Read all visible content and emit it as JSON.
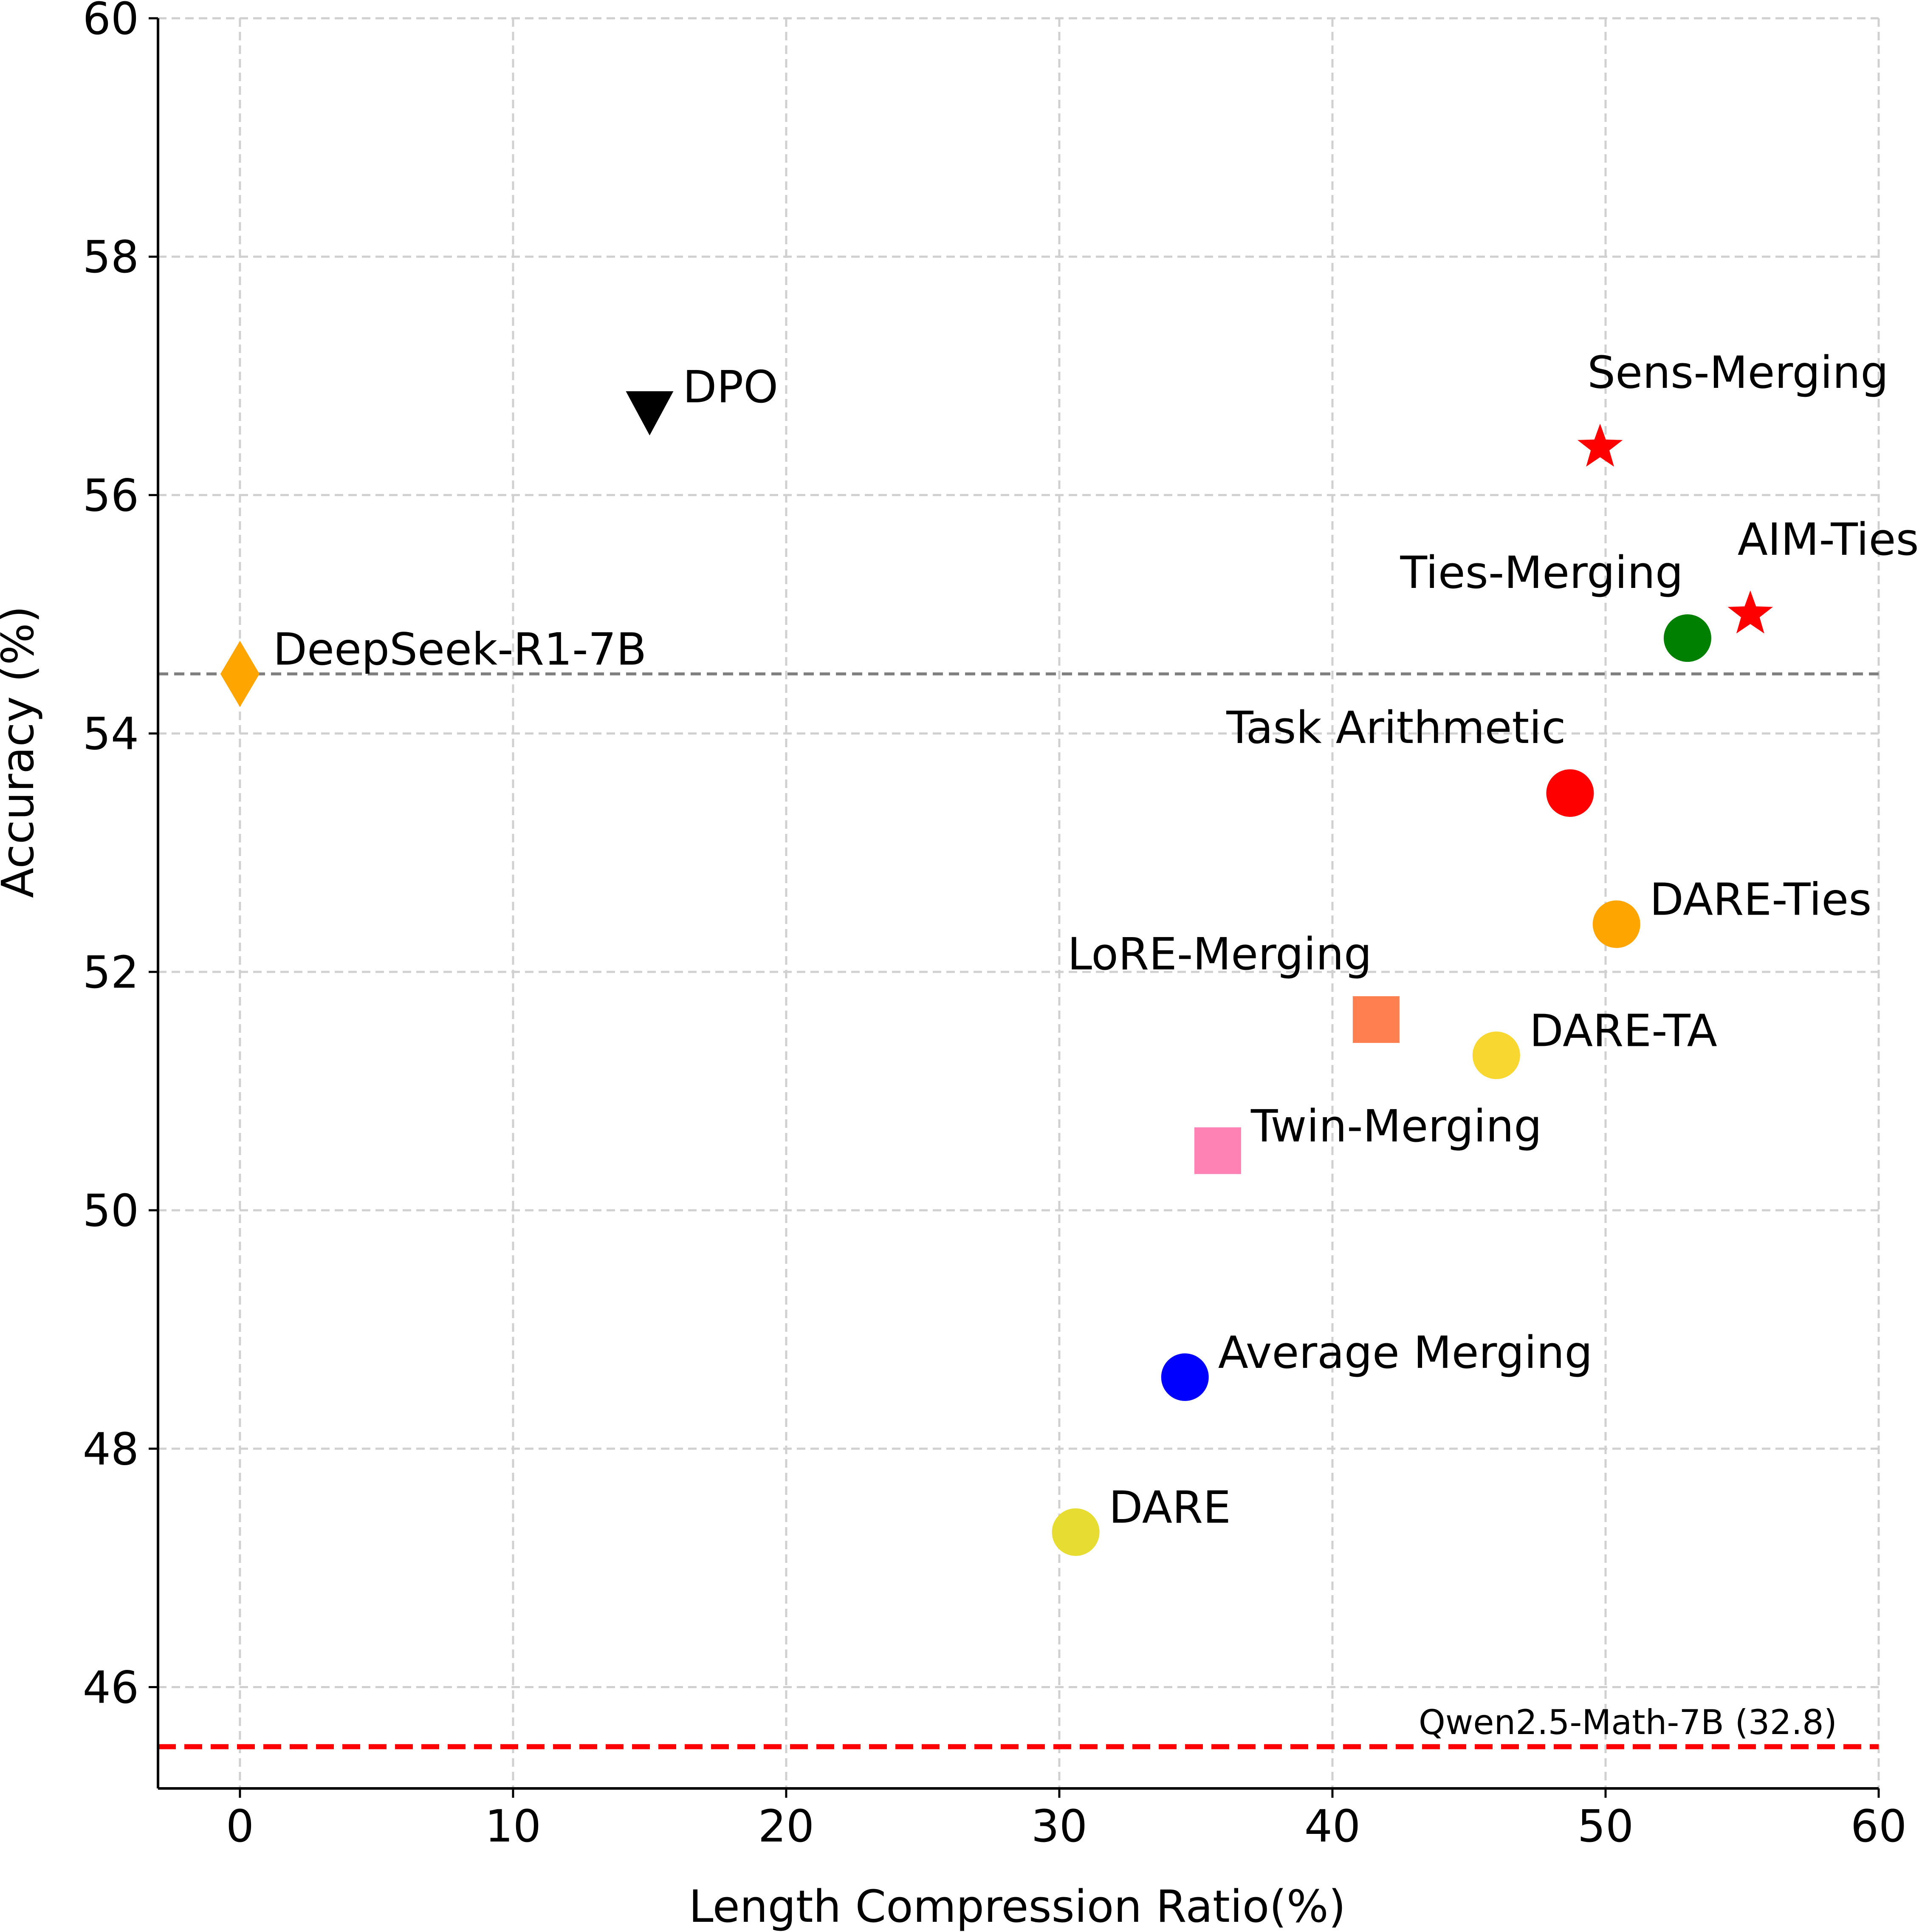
{
  "chart_data": {
    "type": "scatter",
    "title": "",
    "xlabel": "Length Compression Ratio(%)",
    "ylabel": "Accuracy (%)",
    "xlim": [
      -3,
      60
    ],
    "ylim": [
      45.15,
      60
    ],
    "xticks": [
      0,
      10,
      20,
      30,
      40,
      50,
      60
    ],
    "yticks": [
      46,
      48,
      50,
      52,
      54,
      56,
      58,
      60
    ],
    "grid": true,
    "points": [
      {
        "name": "DPO",
        "x": 15.0,
        "y": 56.7,
        "marker": "triangle-down",
        "color": "#000000",
        "label_anchor": "right"
      },
      {
        "name": "Sens-Merging",
        "x": 49.8,
        "y": 56.4,
        "marker": "star",
        "color": "#ff0000",
        "label_anchor": "above-right"
      },
      {
        "name": "AIM-Ties",
        "x": 55.3,
        "y": 55.0,
        "marker": "star",
        "color": "#ff0000",
        "label_anchor": "above-right"
      },
      {
        "name": "Ties-Merging",
        "x": 53.0,
        "y": 54.8,
        "marker": "circle",
        "color": "#008000",
        "label_anchor": "above-left"
      },
      {
        "name": "DeepSeek-R1-7B",
        "x": 0.0,
        "y": 54.5,
        "marker": "diamond",
        "color": "#ffa500",
        "label_anchor": "right"
      },
      {
        "name": "Task Arithmetic",
        "x": 48.7,
        "y": 53.5,
        "marker": "circle",
        "color": "#ff0000",
        "label_anchor": "above-left"
      },
      {
        "name": "DARE-Ties",
        "x": 50.4,
        "y": 52.4,
        "marker": "circle",
        "color": "#ffa500",
        "label_anchor": "right"
      },
      {
        "name": "LoRE-Merging",
        "x": 41.6,
        "y": 51.6,
        "marker": "square",
        "color": "#ff7f50",
        "label_anchor": "above-left"
      },
      {
        "name": "DARE-TA",
        "x": 46.0,
        "y": 51.3,
        "marker": "circle",
        "color": "#f7d730",
        "label_anchor": "right"
      },
      {
        "name": "Twin-Merging",
        "x": 35.8,
        "y": 50.5,
        "marker": "square",
        "color": "#ff82b4",
        "label_anchor": "right"
      },
      {
        "name": "Average Merging",
        "x": 34.6,
        "y": 48.6,
        "marker": "circle",
        "color": "#0000ff",
        "label_anchor": "right"
      },
      {
        "name": "DARE",
        "x": 30.6,
        "y": 47.3,
        "marker": "circle",
        "color": "#e6dc32",
        "label_anchor": "right"
      }
    ],
    "reference_lines": [
      {
        "y": 54.5,
        "style": "dashed",
        "color": "#808080",
        "label": ""
      },
      {
        "y": 45.5,
        "style": "dashed",
        "color": "#ff0000",
        "label": "Qwen2.5-Math-7B (32.8)"
      }
    ]
  }
}
